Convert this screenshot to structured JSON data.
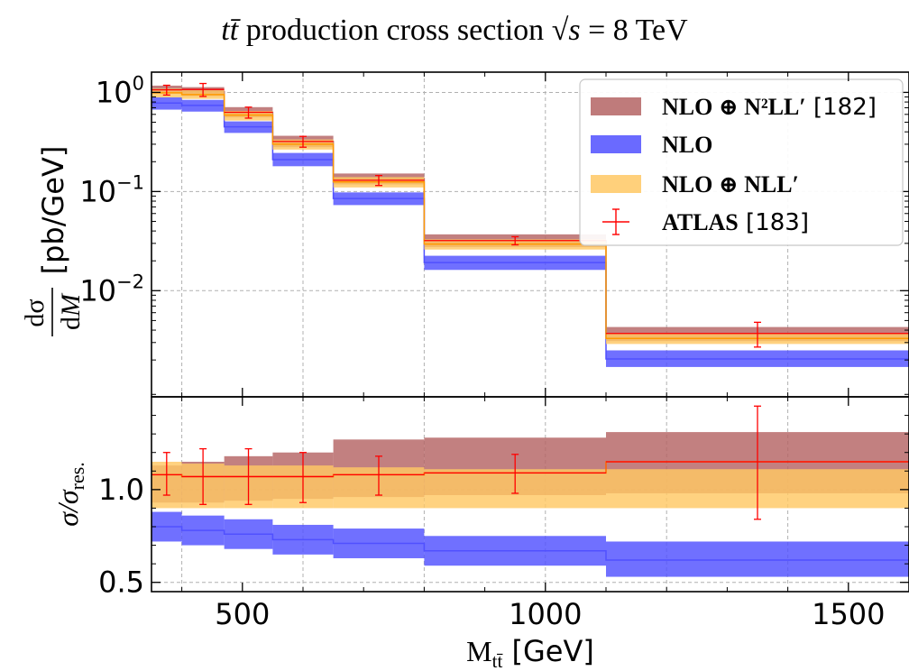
{
  "chart_data": {
    "type": "step",
    "title": "tt̄ production cross section √s = 8 TeV",
    "xlabel": "M_tt̄ [GeV]",
    "xlim": [
      350,
      1600
    ],
    "xticks": [
      500,
      1000,
      1500
    ],
    "bins": [
      [
        350,
        400
      ],
      [
        400,
        470
      ],
      [
        470,
        550
      ],
      [
        550,
        650
      ],
      [
        650,
        800
      ],
      [
        800,
        1100
      ],
      [
        1100,
        1600
      ]
    ],
    "top_panel": {
      "ylabel": "dσ/dM [pb/GeV]",
      "yscale": "log",
      "ylim": [
        0.00085,
        1.6
      ],
      "ytick_labels": [
        "10^0",
        "10^-1",
        "10^-2"
      ],
      "series": [
        {
          "name": "NLO ⊕ N²LL′ [182]",
          "color": "#b46464",
          "kind": "band",
          "center": [
            1.07,
            1.02,
            0.63,
            0.32,
            0.135,
            0.032,
            0.0037
          ],
          "low": [
            0.97,
            0.92,
            0.56,
            0.28,
            0.118,
            0.0275,
            0.0031
          ],
          "high": [
            1.17,
            1.13,
            0.71,
            0.365,
            0.152,
            0.037,
            0.0043
          ]
        },
        {
          "name": "NLO",
          "color": "#5050ff",
          "kind": "band",
          "center": [
            0.78,
            0.74,
            0.45,
            0.21,
            0.085,
            0.0192,
            0.00205
          ],
          "low": [
            0.67,
            0.64,
            0.39,
            0.18,
            0.073,
            0.0162,
            0.0017
          ],
          "high": [
            0.89,
            0.84,
            0.51,
            0.245,
            0.098,
            0.0225,
            0.0025
          ]
        },
        {
          "name": "NLO ⊕ NLL′",
          "color": "#ffc864",
          "kind": "band",
          "center": [
            0.99,
            0.95,
            0.59,
            0.3,
            0.125,
            0.0295,
            0.0033
          ],
          "low": [
            0.89,
            0.86,
            0.52,
            0.265,
            0.11,
            0.026,
            0.0029
          ],
          "high": [
            1.09,
            1.05,
            0.65,
            0.335,
            0.14,
            0.033,
            0.0037
          ]
        },
        {
          "name": "ATLAS [183]",
          "color": "#ff0000",
          "kind": "errorbar",
          "x": [
            375,
            435,
            510,
            600,
            725,
            950,
            1350
          ],
          "y": [
            1.06,
            1.07,
            0.63,
            0.32,
            0.13,
            0.032,
            0.0037
          ],
          "ylow": [
            0.94,
            0.91,
            0.55,
            0.28,
            0.115,
            0.029,
            0.0027
          ],
          "yhigh": [
            1.18,
            1.23,
            0.71,
            0.36,
            0.145,
            0.035,
            0.0048
          ]
        }
      ]
    },
    "bottom_panel": {
      "ylabel": "σ/σres.",
      "ylim": [
        0.45,
        1.5
      ],
      "ytick_labels": [
        "1.0",
        "0.5"
      ],
      "bands": [
        {
          "name": "NLO ⊕ N²LL′ [182]",
          "color": "#b46464",
          "low": [
            0.93,
            0.93,
            0.94,
            0.95,
            0.96,
            0.97,
            0.98
          ],
          "high": [
            1.13,
            1.15,
            1.18,
            1.2,
            1.27,
            1.28,
            1.31
          ]
        },
        {
          "name": "NLO ⊕ NLL′",
          "color": "#ffc864",
          "low": [
            0.9,
            0.9,
            0.9,
            0.9,
            0.9,
            0.9,
            0.9
          ],
          "high": [
            1.15,
            1.14,
            1.13,
            1.13,
            1.12,
            1.11,
            1.11
          ]
        },
        {
          "name": "NLO",
          "color": "#5050ff",
          "center": [
            0.8,
            0.78,
            0.76,
            0.73,
            0.71,
            0.67,
            0.62
          ],
          "low": [
            0.72,
            0.7,
            0.68,
            0.65,
            0.63,
            0.59,
            0.53
          ],
          "high": [
            0.88,
            0.86,
            0.84,
            0.81,
            0.79,
            0.75,
            0.72
          ]
        }
      ],
      "lines": [
        {
          "color": "#ff6600",
          "values": [
            1.08,
            1.07,
            1.07,
            1.07,
            1.08,
            1.09,
            1.15
          ]
        }
      ],
      "points": {
        "color": "#ff0000",
        "x": [
          375,
          435,
          510,
          600,
          725,
          950,
          1350
        ],
        "y": [
          1.08,
          1.07,
          1.07,
          1.07,
          1.08,
          1.09,
          1.15
        ],
        "ylow": [
          0.97,
          0.92,
          0.92,
          0.93,
          0.97,
          0.98,
          0.84
        ],
        "yhigh": [
          1.2,
          1.22,
          1.22,
          1.2,
          1.18,
          1.19,
          1.45
        ]
      }
    },
    "legend": {
      "position": "top-right",
      "entries": [
        "NLO ⊕ N²LL′ [182]",
        "NLO",
        "NLO ⊕ NLL′",
        "ATLAS [183]"
      ]
    },
    "grid": true
  }
}
